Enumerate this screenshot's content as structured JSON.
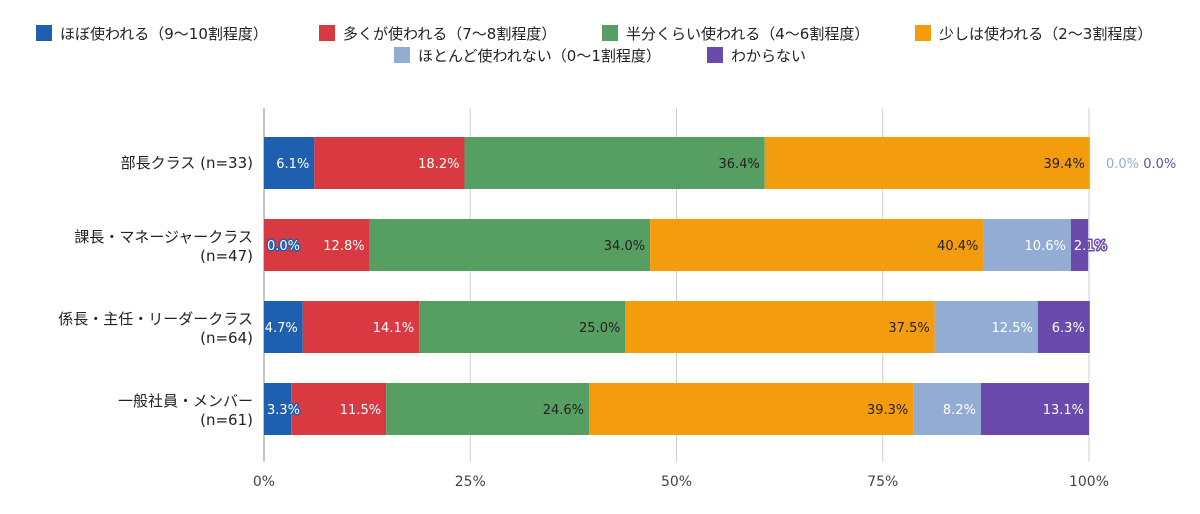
{
  "chart_data": {
    "type": "bar",
    "orientation": "horizontal",
    "stacked": "percent",
    "legend_position": "top",
    "grid": true,
    "xlim": [
      0,
      100
    ],
    "x_ticks": [
      "0%",
      "25%",
      "50%",
      "75%",
      "100%"
    ],
    "categories": [
      "部長クラス (n=33)",
      "課長・マネージャークラス (n=47)",
      "係長・主任・リーダークラス (n=64)",
      "一般社員・メンバー (n=61)"
    ],
    "series": [
      {
        "name": "ほぼ使われる（9〜10割程度）",
        "color": "#1f5fb0",
        "values": [
          6.1,
          0.0,
          4.7,
          3.3
        ]
      },
      {
        "name": "多くが使われる（7〜8割程度）",
        "color": "#d93a42",
        "values": [
          18.2,
          12.8,
          14.1,
          11.5
        ]
      },
      {
        "name": "半分くらい使われる（4〜6割程度）",
        "color": "#579e63",
        "values": [
          36.4,
          34.0,
          25.0,
          24.6
        ]
      },
      {
        "name": "少しは使われる（2〜3割程度）",
        "color": "#f29c0e",
        "values": [
          39.4,
          40.4,
          37.5,
          39.3
        ]
      },
      {
        "name": "ほとんど使われない（0〜1割程度）",
        "color": "#93acd3",
        "values": [
          0.0,
          10.6,
          12.5,
          8.2
        ]
      },
      {
        "name": "わからない",
        "color": "#6a4bab",
        "values": [
          0.0,
          2.1,
          6.3,
          13.1
        ]
      }
    ]
  }
}
